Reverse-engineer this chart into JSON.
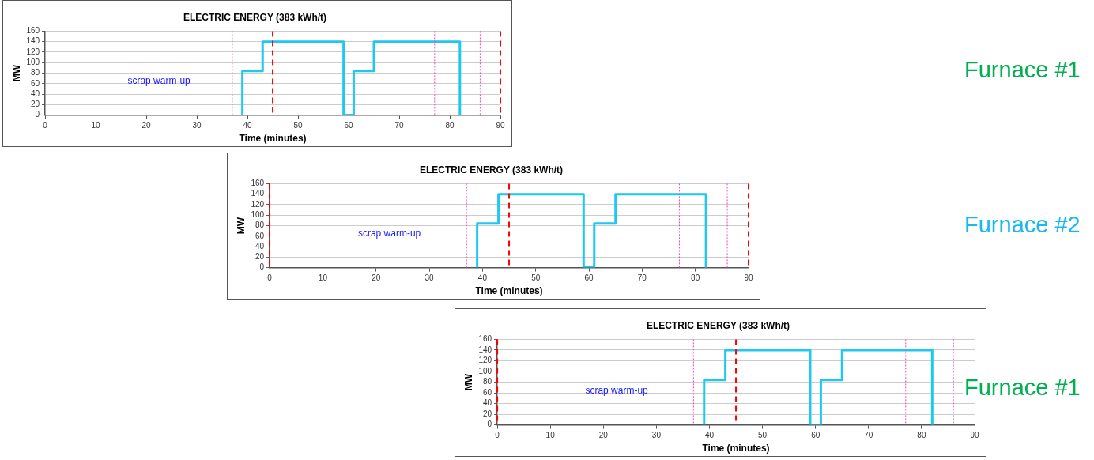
{
  "chart_data": [
    {
      "type": "line",
      "title": "ELECTRIC ENERGY (383 kWh/t)",
      "xlabel": "Time (minutes)",
      "ylabel": "MW",
      "x": [
        39,
        39,
        43,
        43,
        59,
        59,
        61,
        61,
        65,
        65,
        82,
        82
      ],
      "series": [
        {
          "color": "#1ec8f0",
          "values": [
            0,
            84,
            84,
            140,
            140,
            0,
            0,
            84,
            84,
            140,
            140,
            0
          ]
        }
      ],
      "xlim": [
        0,
        90
      ],
      "xticks": [
        0,
        10,
        20,
        30,
        40,
        50,
        60,
        70,
        80,
        90
      ],
      "ylim": [
        0,
        160
      ],
      "yticks": [
        0,
        20,
        40,
        60,
        80,
        100,
        120,
        140,
        160
      ],
      "grid": "y",
      "legend": false,
      "marker": "none",
      "line_style": "solid",
      "ref_lines": [
        {
          "axis": "x",
          "value": 37,
          "color": "#ff40b0",
          "line_style": "dotted"
        },
        {
          "axis": "x",
          "value": 77,
          "color": "#ff40b0",
          "line_style": "dotted"
        },
        {
          "axis": "x",
          "value": 86,
          "color": "#ff40b0",
          "line_style": "dotted"
        },
        {
          "axis": "x",
          "value": 45,
          "color": "#ff0000",
          "line_style": "dashed"
        },
        {
          "axis": "x",
          "value": 90,
          "color": "#ff0000",
          "line_style": "dashed"
        }
      ],
      "annotations": [
        "scrap warm-up",
        "Furnace #1"
      ]
    },
    {
      "type": "line",
      "title": "ELECTRIC ENERGY (383 kWh/t)",
      "xlabel": "Time (minutes)",
      "ylabel": "MW",
      "x": [
        39,
        39,
        43,
        43,
        59,
        59,
        61,
        61,
        65,
        65,
        82,
        82
      ],
      "series": [
        {
          "color": "#1ec8f0",
          "values": [
            0,
            84,
            84,
            140,
            140,
            0,
            0,
            84,
            84,
            140,
            140,
            0
          ]
        }
      ],
      "xlim": [
        0,
        90
      ],
      "xticks": [
        0,
        10,
        20,
        30,
        40,
        50,
        60,
        70,
        80,
        90
      ],
      "ylim": [
        0,
        160
      ],
      "yticks": [
        0,
        20,
        40,
        60,
        80,
        100,
        120,
        140,
        160
      ],
      "grid": "y",
      "legend": false,
      "marker": "none",
      "line_style": "solid",
      "ref_lines": [
        {
          "axis": "x",
          "value": 37,
          "color": "#ff40b0",
          "line_style": "dotted"
        },
        {
          "axis": "x",
          "value": 77,
          "color": "#ff40b0",
          "line_style": "dotted"
        },
        {
          "axis": "x",
          "value": 86,
          "color": "#ff40b0",
          "line_style": "dotted"
        },
        {
          "axis": "x",
          "value": 0,
          "color": "#ff0000",
          "line_style": "dashed"
        },
        {
          "axis": "x",
          "value": 45,
          "color": "#ff0000",
          "line_style": "dashed"
        },
        {
          "axis": "x",
          "value": 90,
          "color": "#ff0000",
          "line_style": "dashed"
        }
      ],
      "annotations": [
        "scrap warm-up",
        "Furnace #2"
      ]
    },
    {
      "type": "line",
      "title": "ELECTRIC ENERGY (383 kWh/t)",
      "xlabel": "Time (minutes)",
      "ylabel": "MW",
      "x": [
        39,
        39,
        43,
        43,
        59,
        59,
        61,
        61,
        65,
        65,
        82,
        82
      ],
      "series": [
        {
          "color": "#1ec8f0",
          "values": [
            0,
            84,
            84,
            140,
            140,
            0,
            0,
            84,
            84,
            140,
            140,
            0
          ]
        }
      ],
      "xlim": [
        0,
        90
      ],
      "xticks": [
        0,
        10,
        20,
        30,
        40,
        50,
        60,
        70,
        80,
        90
      ],
      "ylim": [
        0,
        160
      ],
      "yticks": [
        0,
        20,
        40,
        60,
        80,
        100,
        120,
        140,
        160
      ],
      "grid": "y",
      "legend": false,
      "marker": "none",
      "line_style": "solid",
      "ref_lines": [
        {
          "axis": "x",
          "value": 37,
          "color": "#ff40b0",
          "line_style": "dotted"
        },
        {
          "axis": "x",
          "value": 77,
          "color": "#ff40b0",
          "line_style": "dotted"
        },
        {
          "axis": "x",
          "value": 86,
          "color": "#ff40b0",
          "line_style": "dotted"
        },
        {
          "axis": "x",
          "value": 0,
          "color": "#ff0000",
          "line_style": "dashed"
        },
        {
          "axis": "x",
          "value": 45,
          "color": "#ff0000",
          "line_style": "dashed"
        }
      ],
      "annotations": [
        "scrap warm-up",
        "Furnace #1"
      ]
    }
  ]
}
